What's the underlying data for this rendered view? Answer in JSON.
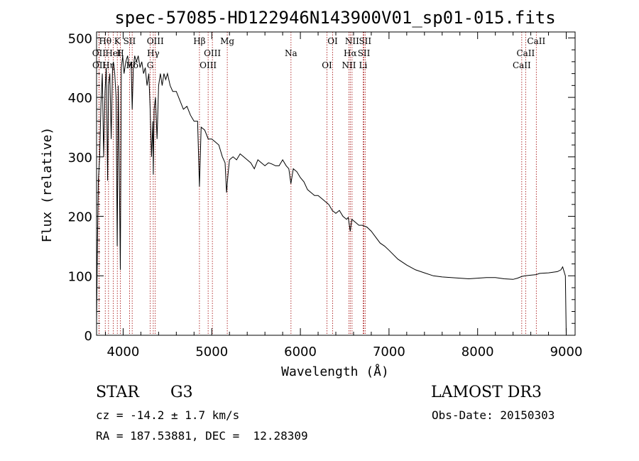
{
  "chart_data": {
    "type": "line",
    "title": "spec-57085-HD122946N143900V01_sp01-015.fits",
    "xlabel": "Wavelength (Å)",
    "ylabel": "Flux (relative)",
    "xlim": [
      3700,
      9100
    ],
    "ylim": [
      0,
      510
    ],
    "xticks": [
      4000,
      5000,
      6000,
      7000,
      8000,
      9000
    ],
    "yticks": [
      0,
      100,
      200,
      300,
      400,
      500
    ],
    "series": [
      {
        "name": "flux",
        "x": [
          3700,
          3710,
          3720,
          3735,
          3750,
          3765,
          3780,
          3795,
          3810,
          3825,
          3835,
          3850,
          3865,
          3880,
          3890,
          3905,
          3920,
          3933,
          3945,
          3955,
          3968,
          3980,
          3995,
          4010,
          4030,
          4050,
          4070,
          4090,
          4102,
          4115,
          4130,
          4150,
          4170,
          4190,
          4210,
          4230,
          4250,
          4270,
          4290,
          4305,
          4320,
          4335,
          4340,
          4350,
          4365,
          4383,
          4400,
          4420,
          4440,
          4460,
          4480,
          4500,
          4530,
          4560,
          4600,
          4640,
          4680,
          4720,
          4760,
          4800,
          4840,
          4861,
          4880,
          4920,
          4960,
          5000,
          5040,
          5080,
          5120,
          5150,
          5167,
          5183,
          5200,
          5240,
          5280,
          5320,
          5360,
          5400,
          5440,
          5480,
          5520,
          5560,
          5600,
          5640,
          5680,
          5720,
          5760,
          5800,
          5840,
          5870,
          5893,
          5920,
          5960,
          6000,
          6040,
          6080,
          6120,
          6160,
          6200,
          6240,
          6280,
          6320,
          6360,
          6400,
          6440,
          6480,
          6520,
          6540,
          6563,
          6580,
          6620,
          6660,
          6700,
          6750,
          6800,
          6850,
          6900,
          6950,
          7000,
          7100,
          7200,
          7300,
          7400,
          7500,
          7600,
          7700,
          7800,
          7900,
          8000,
          8100,
          8200,
          8300,
          8400,
          8450,
          8500,
          8540,
          8600,
          8660,
          8700,
          8800,
          8900,
          8940,
          8960,
          8980,
          8990,
          9000
        ],
        "values": [
          20,
          150,
          260,
          300,
          390,
          440,
          300,
          410,
          450,
          260,
          420,
          440,
          330,
          450,
          460,
          440,
          400,
          150,
          420,
          300,
          110,
          450,
          470,
          440,
          460,
          470,
          450,
          460,
          380,
          450,
          470,
          460,
          470,
          450,
          460,
          440,
          450,
          420,
          440,
          380,
          300,
          360,
          270,
          380,
          400,
          330,
          420,
          440,
          420,
          440,
          430,
          440,
          420,
          410,
          410,
          395,
          380,
          385,
          370,
          360,
          360,
          250,
          350,
          345,
          330,
          330,
          325,
          320,
          300,
          290,
          240,
          270,
          295,
          300,
          295,
          305,
          300,
          295,
          290,
          280,
          295,
          290,
          285,
          290,
          288,
          285,
          285,
          295,
          285,
          280,
          255,
          280,
          275,
          265,
          258,
          245,
          240,
          235,
          235,
          230,
          225,
          220,
          210,
          205,
          210,
          200,
          195,
          198,
          175,
          195,
          190,
          185,
          185,
          182,
          175,
          165,
          155,
          150,
          143,
          128,
          118,
          110,
          105,
          100,
          98,
          97,
          96,
          95,
          96,
          97,
          97,
          95,
          94,
          96,
          99,
          100,
          101,
          102,
          104,
          105,
          107,
          110,
          115,
          105,
          100,
          0
        ]
      }
    ],
    "spectral_lines": [
      {
        "label": "Hθ",
        "wavelength": 3798
      },
      {
        "label": "OII",
        "wavelength": 3727
      },
      {
        "label": "OII",
        "wavelength": 3729
      },
      {
        "label": "K",
        "wavelength": 3934
      },
      {
        "label": "HeI",
        "wavelength": 3889
      },
      {
        "label": "Hη",
        "wavelength": 3835
      },
      {
        "label": "SII",
        "wavelength": 4072
      },
      {
        "label": "H",
        "wavelength": 3968
      },
      {
        "label": "Hδ",
        "wavelength": 4102
      },
      {
        "label": "OIII",
        "wavelength": 4363
      },
      {
        "label": "Hγ",
        "wavelength": 4340
      },
      {
        "label": "G",
        "wavelength": 4305
      },
      {
        "label": "Hβ",
        "wavelength": 4861
      },
      {
        "label": "OIII",
        "wavelength": 5007
      },
      {
        "label": "OIII",
        "wavelength": 4959
      },
      {
        "label": "Mg",
        "wavelength": 5175
      },
      {
        "label": "Na",
        "wavelength": 5894
      },
      {
        "label": "OI",
        "wavelength": 6300
      },
      {
        "label": "OI",
        "wavelength": 6364
      },
      {
        "label": "Hα",
        "wavelength": 6563
      },
      {
        "label": "NII",
        "wavelength": 6548
      },
      {
        "label": "NII",
        "wavelength": 6583
      },
      {
        "label": "SII",
        "wavelength": 6717
      },
      {
        "label": "Li",
        "wavelength": 6708
      },
      {
        "label": "SII",
        "wavelength": 6731
      },
      {
        "label": "CaII",
        "wavelength": 8542
      },
      {
        "label": "CaII",
        "wavelength": 8498
      },
      {
        "label": "CaII",
        "wavelength": 8662
      }
    ]
  },
  "info": {
    "object_class": "STAR",
    "subclass": "G3",
    "survey": "LAMOST DR3",
    "redshift": "cz = -14.2 ± 1.7 km/s",
    "obs_date": "Obs-Date: 20150303",
    "coords": "RA = 187.53881, DEC =  12.28309"
  },
  "colors": {
    "line_marker": "#a00000",
    "spectrum": "#000000",
    "axis": "#000000"
  }
}
